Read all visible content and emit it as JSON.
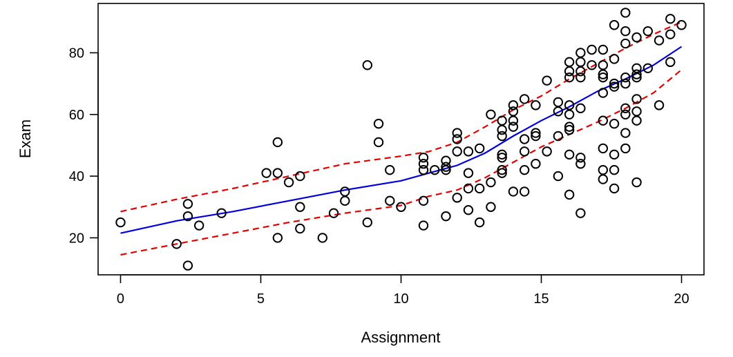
{
  "chart_data": {
    "type": "scatter",
    "title": "",
    "xlabel": "Assignment",
    "ylabel": "Exam",
    "xlim": [
      -0.8,
      20.8
    ],
    "ylim": [
      8,
      96
    ],
    "xticks": [
      0,
      5,
      10,
      15,
      20
    ],
    "yticks": [
      20,
      40,
      60,
      80
    ],
    "grid": false,
    "colors": {
      "points": "#000000",
      "fit": "#0000dd",
      "band": "#e60000",
      "axis": "#000000"
    },
    "points": [
      [
        0,
        25
      ],
      [
        2,
        18
      ],
      [
        2.4,
        11
      ],
      [
        2.4,
        27
      ],
      [
        2.4,
        31
      ],
      [
        2.8,
        24
      ],
      [
        3.6,
        28
      ],
      [
        5.2,
        41
      ],
      [
        5.6,
        51
      ],
      [
        5.6,
        41
      ],
      [
        5.6,
        20
      ],
      [
        6,
        38
      ],
      [
        6.4,
        40
      ],
      [
        6.4,
        30
      ],
      [
        6.4,
        23
      ],
      [
        7.2,
        20
      ],
      [
        7.6,
        28
      ],
      [
        8,
        35
      ],
      [
        8,
        32
      ],
      [
        8.8,
        76
      ],
      [
        8.8,
        25
      ],
      [
        9.2,
        57
      ],
      [
        9.2,
        51
      ],
      [
        9.6,
        42
      ],
      [
        9.6,
        32
      ],
      [
        10,
        30
      ],
      [
        10.8,
        46
      ],
      [
        10.8,
        44
      ],
      [
        10.8,
        42
      ],
      [
        10.8,
        32
      ],
      [
        10.8,
        24
      ],
      [
        11.2,
        42
      ],
      [
        11.6,
        45
      ],
      [
        11.6,
        43
      ],
      [
        11.6,
        42
      ],
      [
        11.6,
        27
      ],
      [
        12,
        54
      ],
      [
        12,
        52
      ],
      [
        12,
        48
      ],
      [
        12,
        33
      ],
      [
        12.4,
        48
      ],
      [
        12.4,
        41
      ],
      [
        12.4,
        36
      ],
      [
        12.4,
        29
      ],
      [
        12.8,
        49
      ],
      [
        12.8,
        36
      ],
      [
        12.8,
        25
      ],
      [
        13.2,
        60
      ],
      [
        13.2,
        38
      ],
      [
        13.2,
        30
      ],
      [
        13.6,
        58
      ],
      [
        13.6,
        55
      ],
      [
        13.6,
        53
      ],
      [
        13.6,
        47
      ],
      [
        13.6,
        46
      ],
      [
        13.6,
        42
      ],
      [
        13.6,
        41
      ],
      [
        14,
        63
      ],
      [
        14,
        61
      ],
      [
        14,
        58
      ],
      [
        14,
        56
      ],
      [
        14,
        35
      ],
      [
        14.4,
        65
      ],
      [
        14.4,
        52
      ],
      [
        14.4,
        48
      ],
      [
        14.4,
        42
      ],
      [
        14.4,
        35
      ],
      [
        14.8,
        63
      ],
      [
        14.8,
        54
      ],
      [
        14.8,
        53
      ],
      [
        14.8,
        44
      ],
      [
        15.2,
        71
      ],
      [
        15.2,
        48
      ],
      [
        15.6,
        64
      ],
      [
        15.6,
        61
      ],
      [
        15.6,
        53
      ],
      [
        15.6,
        40
      ],
      [
        16,
        77
      ],
      [
        16,
        74
      ],
      [
        16,
        72
      ],
      [
        16,
        63
      ],
      [
        16,
        60
      ],
      [
        16,
        56
      ],
      [
        16,
        55
      ],
      [
        16,
        47
      ],
      [
        16,
        34
      ],
      [
        16.4,
        80
      ],
      [
        16.4,
        77
      ],
      [
        16.4,
        74
      ],
      [
        16.4,
        72
      ],
      [
        16.4,
        62
      ],
      [
        16.4,
        46
      ],
      [
        16.4,
        44
      ],
      [
        16.4,
        28
      ],
      [
        16.8,
        81
      ],
      [
        16.8,
        76
      ],
      [
        17.2,
        81
      ],
      [
        17.2,
        76
      ],
      [
        17.2,
        73
      ],
      [
        17.2,
        72
      ],
      [
        17.2,
        67
      ],
      [
        17.2,
        58
      ],
      [
        17.2,
        49
      ],
      [
        17.2,
        42
      ],
      [
        17.2,
        39
      ],
      [
        17.6,
        89
      ],
      [
        17.6,
        78
      ],
      [
        17.6,
        70
      ],
      [
        17.6,
        69
      ],
      [
        17.6,
        57
      ],
      [
        17.6,
        47
      ],
      [
        17.6,
        42
      ],
      [
        17.6,
        36
      ],
      [
        18,
        93
      ],
      [
        18,
        87
      ],
      [
        18,
        83
      ],
      [
        18,
        72
      ],
      [
        18,
        70
      ],
      [
        18,
        62
      ],
      [
        18,
        60
      ],
      [
        18,
        54
      ],
      [
        18,
        49
      ],
      [
        18.4,
        85
      ],
      [
        18.4,
        75
      ],
      [
        18.4,
        73
      ],
      [
        18.4,
        72
      ],
      [
        18.4,
        65
      ],
      [
        18.4,
        61
      ],
      [
        18.4,
        58
      ],
      [
        18.4,
        38
      ],
      [
        18.8,
        87
      ],
      [
        18.8,
        75
      ],
      [
        19.2,
        84
      ],
      [
        19.2,
        63
      ],
      [
        19.6,
        91
      ],
      [
        19.6,
        86
      ],
      [
        19.6,
        77
      ],
      [
        20,
        89
      ]
    ],
    "fit": {
      "x": [
        0,
        2,
        4,
        6,
        8,
        10,
        11,
        12,
        13,
        14,
        15,
        16,
        17,
        18,
        19,
        20
      ],
      "y": [
        21.5,
        25.5,
        28.5,
        32,
        35.5,
        38.5,
        41,
        43.5,
        47.5,
        53,
        58,
        62.5,
        67.5,
        71.5,
        76,
        82
      ],
      "upper": [
        28.5,
        32.5,
        36,
        40,
        44,
        46.5,
        48,
        51,
        56,
        61.5,
        66,
        71.5,
        76.5,
        81.5,
        86,
        90
      ],
      "lower": [
        14.5,
        18,
        21.5,
        25,
        28,
        30.5,
        33.5,
        35.5,
        39.5,
        44.5,
        49.5,
        53.5,
        57.5,
        62,
        67,
        74.5
      ]
    }
  }
}
